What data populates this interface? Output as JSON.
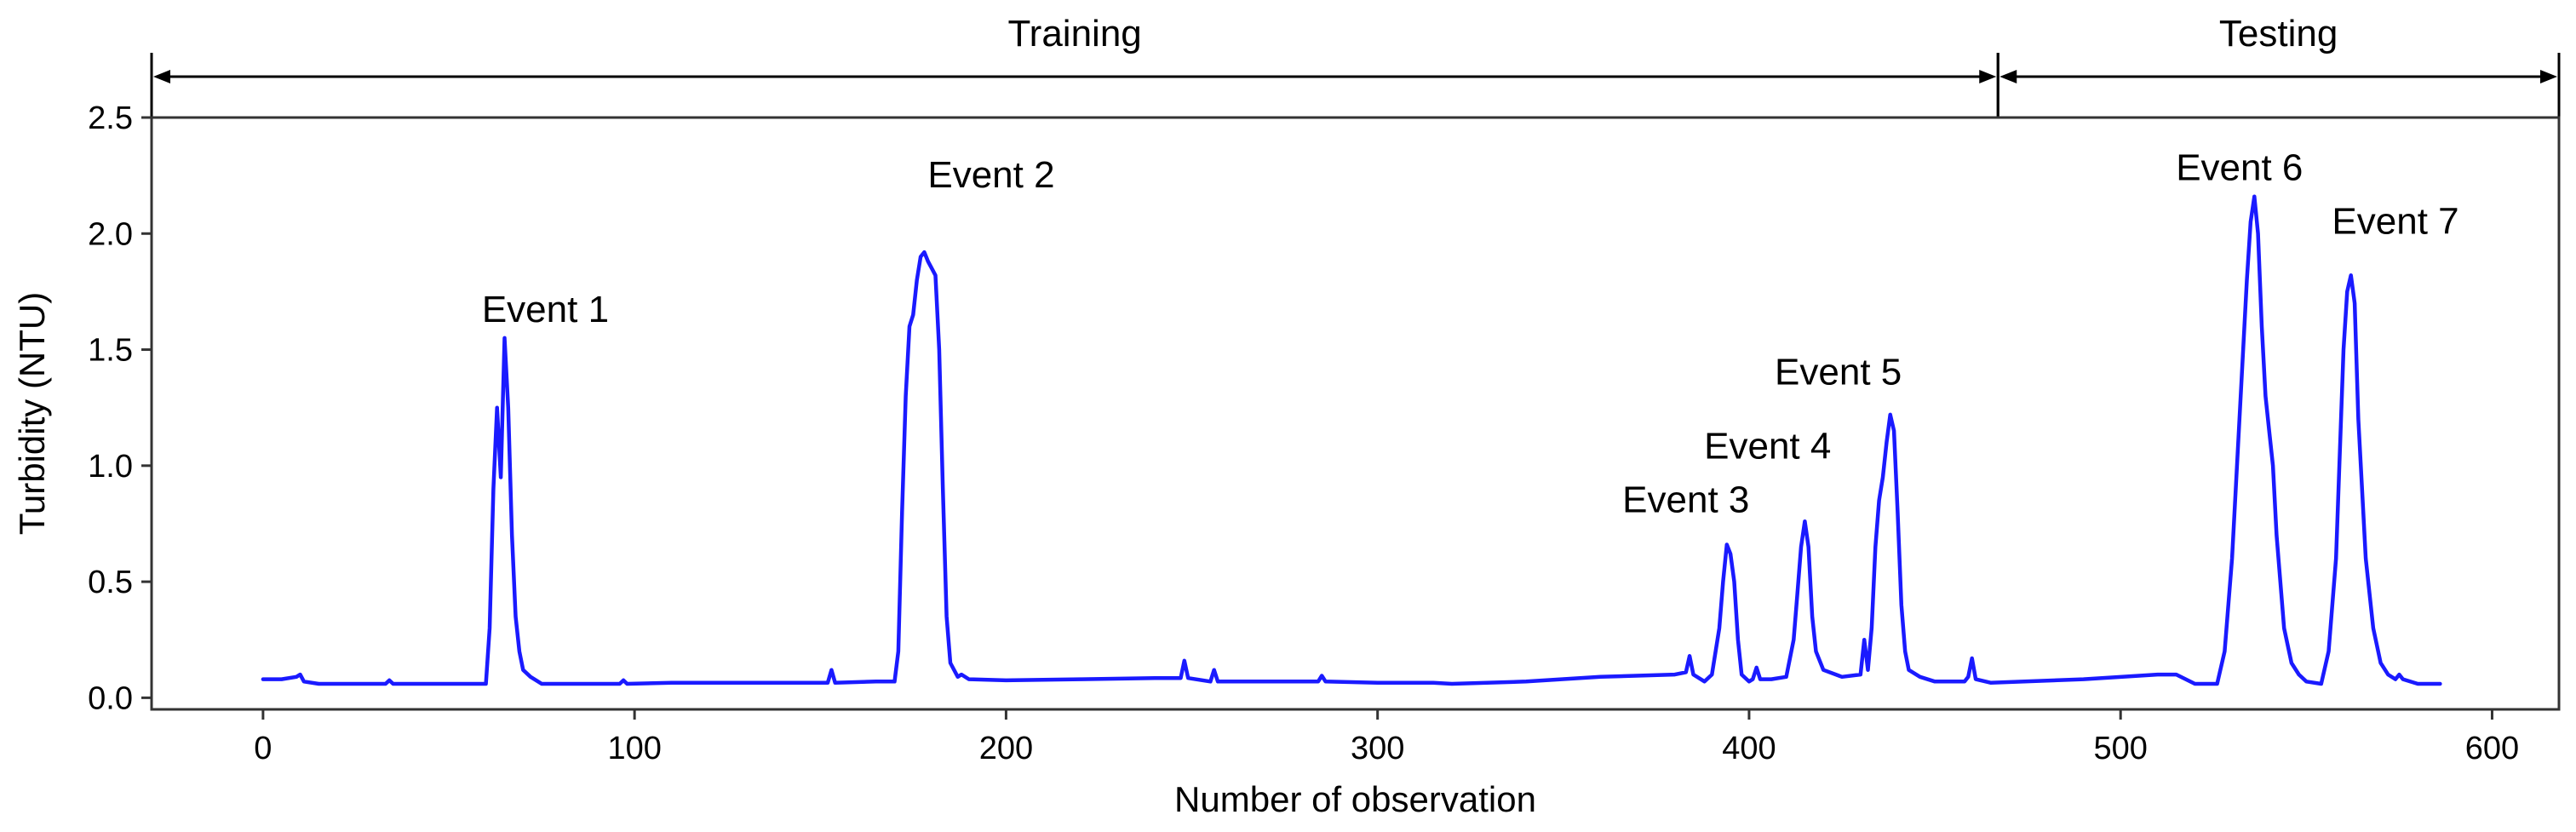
{
  "chart_data": {
    "type": "line",
    "title": "",
    "xlabel": "Number of observation",
    "ylabel": "Turbidity (NTU)",
    "xlim": [
      -30,
      618
    ],
    "ylim": [
      -0.05,
      2.5
    ],
    "xticks": [
      0,
      100,
      200,
      300,
      400,
      500,
      600
    ],
    "yticks": [
      0.0,
      0.5,
      1.0,
      1.5,
      2.0,
      2.5
    ],
    "xtick_labels": [
      "0",
      "100",
      "200",
      "300",
      "400",
      "500",
      "600"
    ],
    "ytick_labels": [
      "0.0",
      "0.5",
      "1.0",
      "1.5",
      "2.0",
      "2.5"
    ],
    "grid": false,
    "series": [
      {
        "color": "#1a1aff",
        "points": [
          [
            0,
            0.08
          ],
          [
            5,
            0.08
          ],
          [
            9,
            0.09
          ],
          [
            10,
            0.1
          ],
          [
            11,
            0.07
          ],
          [
            15,
            0.06
          ],
          [
            25,
            0.06
          ],
          [
            33,
            0.06
          ],
          [
            34,
            0.075
          ],
          [
            35,
            0.06
          ],
          [
            45,
            0.06
          ],
          [
            55,
            0.06
          ],
          [
            60,
            0.06
          ],
          [
            61,
            0.3
          ],
          [
            62,
            0.9
          ],
          [
            63,
            1.25
          ],
          [
            64,
            0.95
          ],
          [
            65,
            1.55
          ],
          [
            66,
            1.25
          ],
          [
            67,
            0.7
          ],
          [
            68,
            0.35
          ],
          [
            69,
            0.2
          ],
          [
            70,
            0.12
          ],
          [
            72,
            0.09
          ],
          [
            75,
            0.06
          ],
          [
            85,
            0.06
          ],
          [
            96,
            0.06
          ],
          [
            97,
            0.075
          ],
          [
            98,
            0.06
          ],
          [
            110,
            0.065
          ],
          [
            130,
            0.065
          ],
          [
            150,
            0.065
          ],
          [
            152,
            0.065
          ],
          [
            153,
            0.12
          ],
          [
            154,
            0.065
          ],
          [
            165,
            0.07
          ],
          [
            170,
            0.07
          ],
          [
            171,
            0.2
          ],
          [
            172,
            0.8
          ],
          [
            173,
            1.3
          ],
          [
            174,
            1.6
          ],
          [
            175,
            1.65
          ],
          [
            176,
            1.8
          ],
          [
            177,
            1.9
          ],
          [
            178,
            1.92
          ],
          [
            179,
            1.88
          ],
          [
            180,
            1.85
          ],
          [
            181,
            1.82
          ],
          [
            182,
            1.5
          ],
          [
            183,
            0.9
          ],
          [
            184,
            0.35
          ],
          [
            185,
            0.15
          ],
          [
            187,
            0.09
          ],
          [
            188,
            0.1
          ],
          [
            190,
            0.08
          ],
          [
            200,
            0.075
          ],
          [
            220,
            0.08
          ],
          [
            240,
            0.085
          ],
          [
            247,
            0.085
          ],
          [
            248,
            0.16
          ],
          [
            249,
            0.085
          ],
          [
            255,
            0.07
          ],
          [
            256,
            0.12
          ],
          [
            257,
            0.07
          ],
          [
            270,
            0.07
          ],
          [
            284,
            0.07
          ],
          [
            285,
            0.095
          ],
          [
            286,
            0.07
          ],
          [
            300,
            0.065
          ],
          [
            315,
            0.065
          ],
          [
            320,
            0.06
          ],
          [
            340,
            0.07
          ],
          [
            360,
            0.09
          ],
          [
            380,
            0.1
          ],
          [
            383,
            0.11
          ],
          [
            384,
            0.18
          ],
          [
            385,
            0.1
          ],
          [
            388,
            0.07
          ],
          [
            390,
            0.1
          ],
          [
            392,
            0.3
          ],
          [
            393,
            0.5
          ],
          [
            394,
            0.66
          ],
          [
            395,
            0.62
          ],
          [
            396,
            0.5
          ],
          [
            397,
            0.25
          ],
          [
            398,
            0.1
          ],
          [
            400,
            0.07
          ],
          [
            401,
            0.08
          ],
          [
            402,
            0.13
          ],
          [
            403,
            0.08
          ],
          [
            406,
            0.08
          ],
          [
            410,
            0.09
          ],
          [
            412,
            0.25
          ],
          [
            413,
            0.45
          ],
          [
            414,
            0.65
          ],
          [
            415,
            0.76
          ],
          [
            416,
            0.65
          ],
          [
            417,
            0.35
          ],
          [
            418,
            0.2
          ],
          [
            420,
            0.12
          ],
          [
            425,
            0.09
          ],
          [
            430,
            0.1
          ],
          [
            431,
            0.25
          ],
          [
            432,
            0.12
          ],
          [
            433,
            0.3
          ],
          [
            434,
            0.65
          ],
          [
            435,
            0.85
          ],
          [
            436,
            0.95
          ],
          [
            437,
            1.1
          ],
          [
            438,
            1.22
          ],
          [
            439,
            1.15
          ],
          [
            440,
            0.8
          ],
          [
            441,
            0.4
          ],
          [
            442,
            0.2
          ],
          [
            443,
            0.12
          ],
          [
            446,
            0.09
          ],
          [
            450,
            0.07
          ],
          [
            458,
            0.07
          ],
          [
            459,
            0.09
          ],
          [
            460,
            0.17
          ],
          [
            461,
            0.08
          ],
          [
            465,
            0.065
          ],
          [
            490,
            0.08
          ],
          [
            510,
            0.1
          ],
          [
            515,
            0.1
          ],
          [
            520,
            0.06
          ],
          [
            526,
            0.06
          ],
          [
            528,
            0.2
          ],
          [
            530,
            0.6
          ],
          [
            532,
            1.2
          ],
          [
            534,
            1.8
          ],
          [
            535,
            2.05
          ],
          [
            536,
            2.16
          ],
          [
            537,
            2.0
          ],
          [
            538,
            1.6
          ],
          [
            539,
            1.3
          ],
          [
            540,
            1.15
          ],
          [
            541,
            1.0
          ],
          [
            542,
            0.7
          ],
          [
            544,
            0.3
          ],
          [
            546,
            0.15
          ],
          [
            548,
            0.1
          ],
          [
            550,
            0.07
          ],
          [
            554,
            0.06
          ],
          [
            556,
            0.2
          ],
          [
            558,
            0.6
          ],
          [
            560,
            1.5
          ],
          [
            561,
            1.75
          ],
          [
            562,
            1.82
          ],
          [
            563,
            1.7
          ],
          [
            564,
            1.2
          ],
          [
            566,
            0.6
          ],
          [
            568,
            0.3
          ],
          [
            570,
            0.15
          ],
          [
            572,
            0.1
          ],
          [
            574,
            0.08
          ],
          [
            575,
            0.1
          ],
          [
            576,
            0.08
          ],
          [
            580,
            0.06
          ],
          [
            586,
            0.06
          ]
        ]
      }
    ],
    "annotations": [
      {
        "text": "Event 1",
        "x": 76,
        "y": 1.62
      },
      {
        "text": "Event 2",
        "x": 196,
        "y": 2.2
      },
      {
        "text": "Event 3",
        "x": 383,
        "y": 0.8
      },
      {
        "text": "Event 4",
        "x": 405,
        "y": 1.03
      },
      {
        "text": "Event 5",
        "x": 424,
        "y": 1.35
      },
      {
        "text": "Event 6",
        "x": 532,
        "y": 2.23
      },
      {
        "text": "Event 7",
        "x": 574,
        "y": 2.0
      }
    ],
    "phases": [
      {
        "text": "Training",
        "from": -30,
        "to": 467
      },
      {
        "text": "Testing",
        "from": 467,
        "to": 618
      }
    ]
  }
}
